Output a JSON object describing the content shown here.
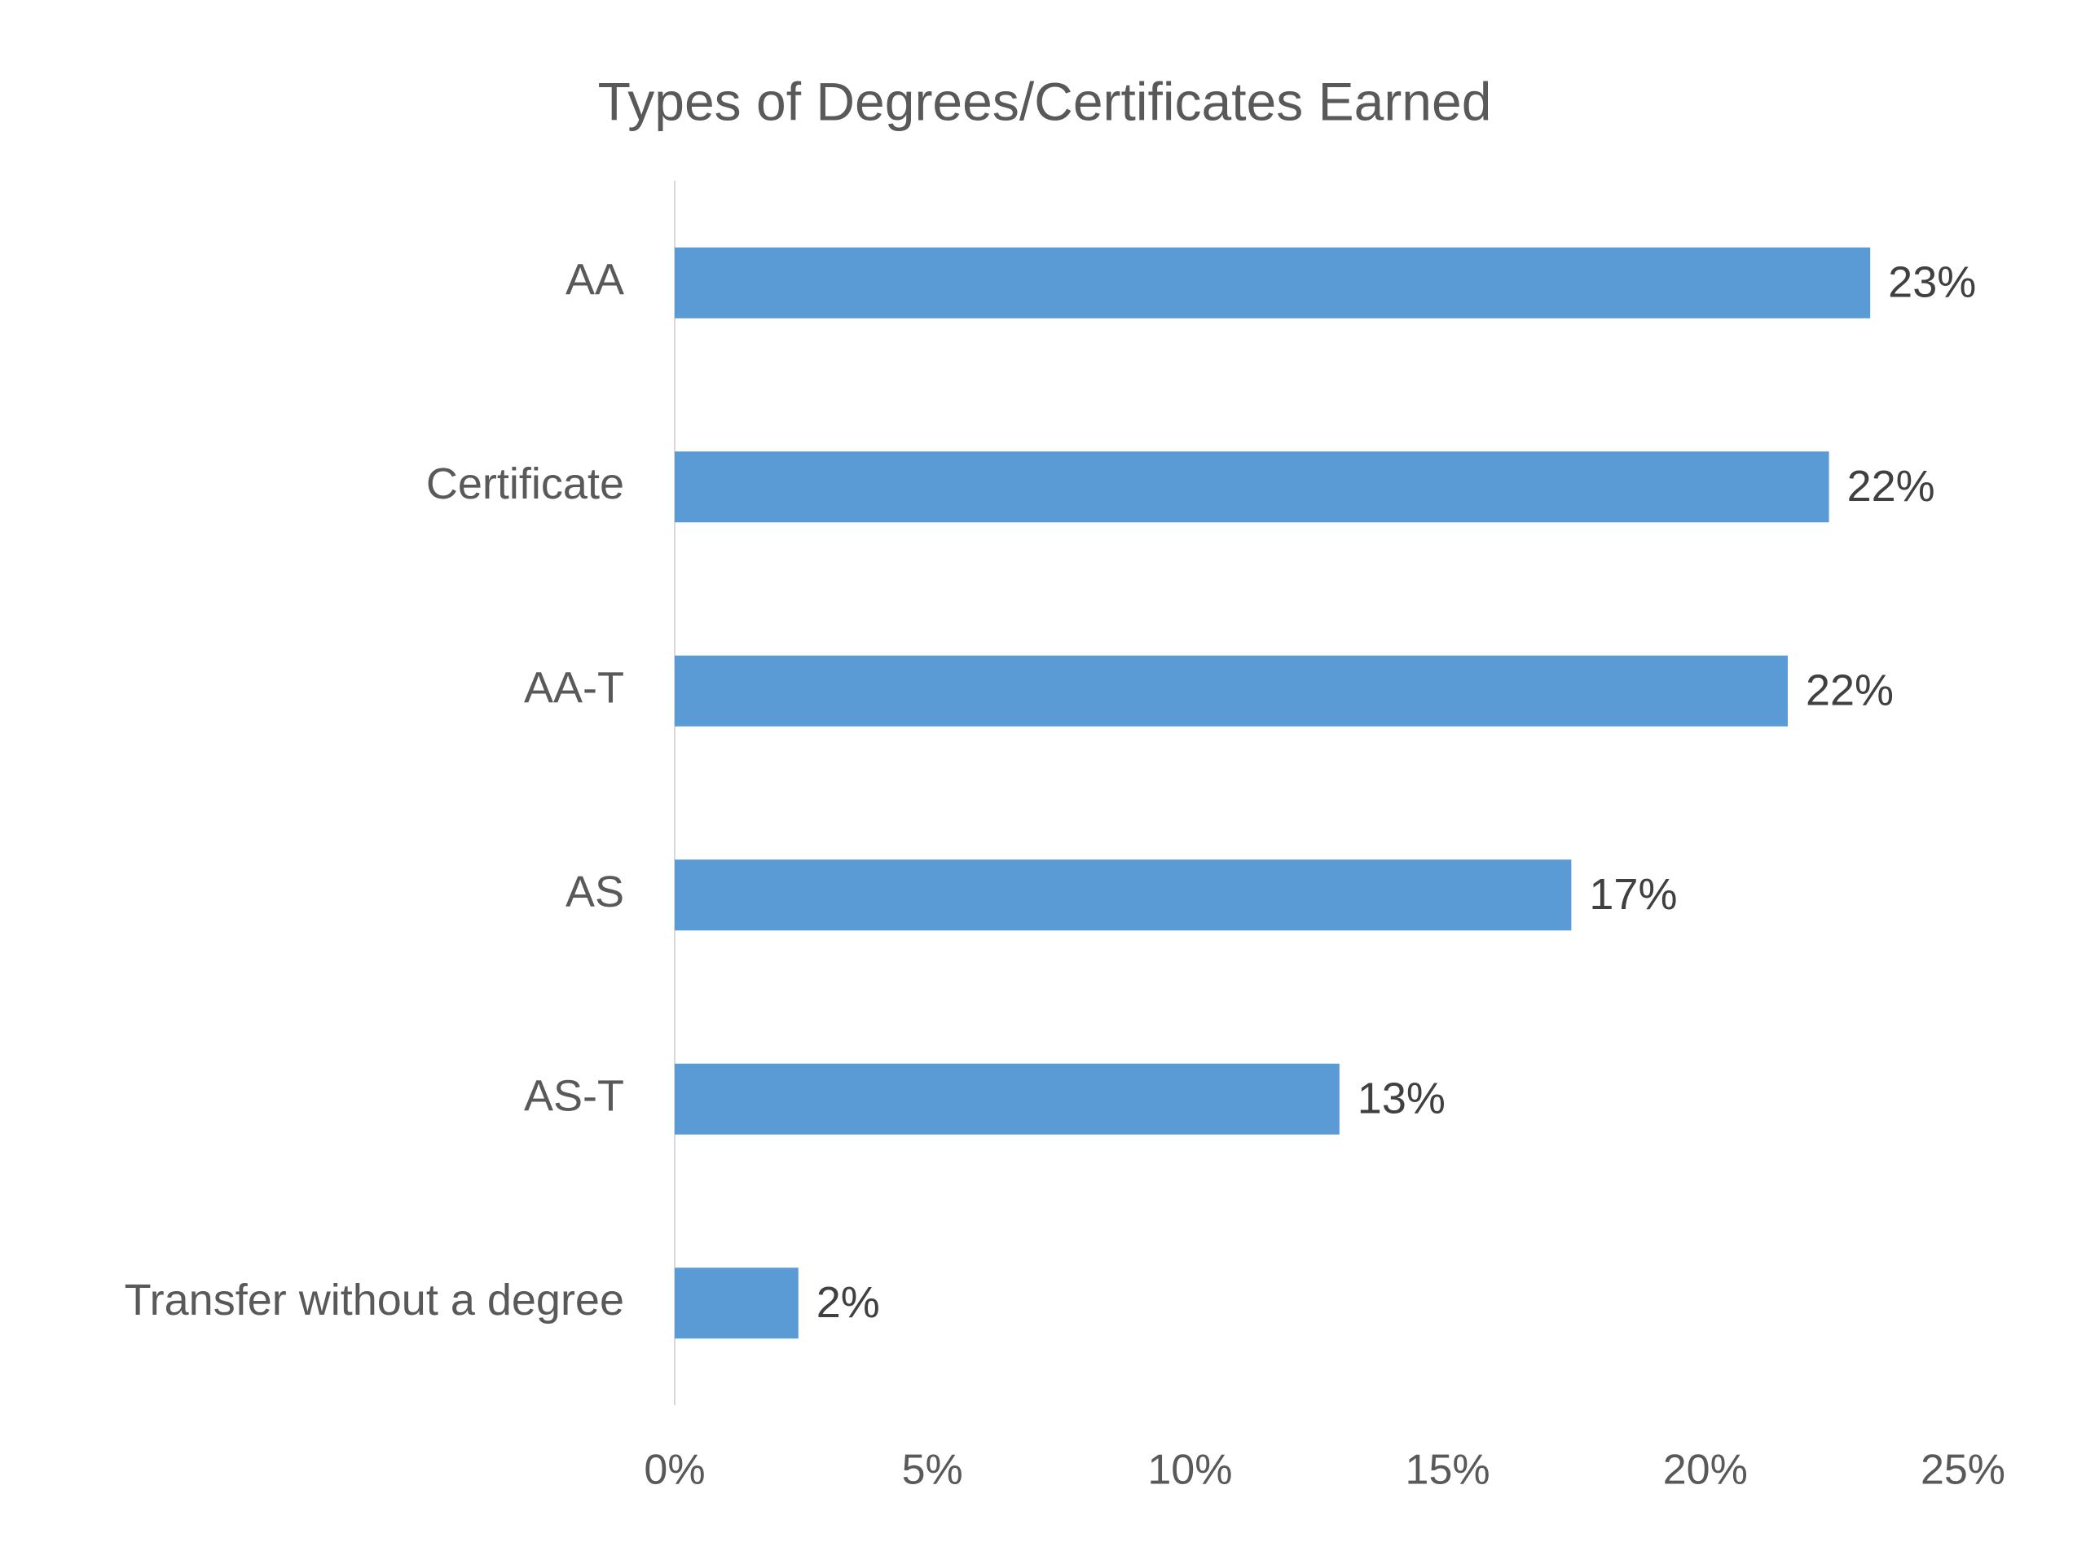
{
  "chart_data": {
    "type": "bar",
    "orientation": "horizontal",
    "title": "Types of Degrees/Certificates Earned",
    "categories": [
      "AA",
      "Certificate",
      "AA-T",
      "AS",
      "AS-T",
      "Transfer without a degree"
    ],
    "values": [
      23.2,
      22.4,
      21.6,
      17.4,
      12.9,
      2.4
    ],
    "value_labels": [
      "23%",
      "22%",
      "22%",
      "17%",
      "13%",
      "2%"
    ],
    "color": "#5b9bd5",
    "xlim": [
      0,
      25
    ],
    "xticks": [
      {
        "value": 0,
        "label": "0%"
      },
      {
        "value": 5,
        "label": "5%"
      },
      {
        "value": 10,
        "label": "10%"
      },
      {
        "value": 15,
        "label": "15%"
      },
      {
        "value": 20,
        "label": "20%"
      },
      {
        "value": 25,
        "label": "25%"
      }
    ],
    "grid": false
  }
}
